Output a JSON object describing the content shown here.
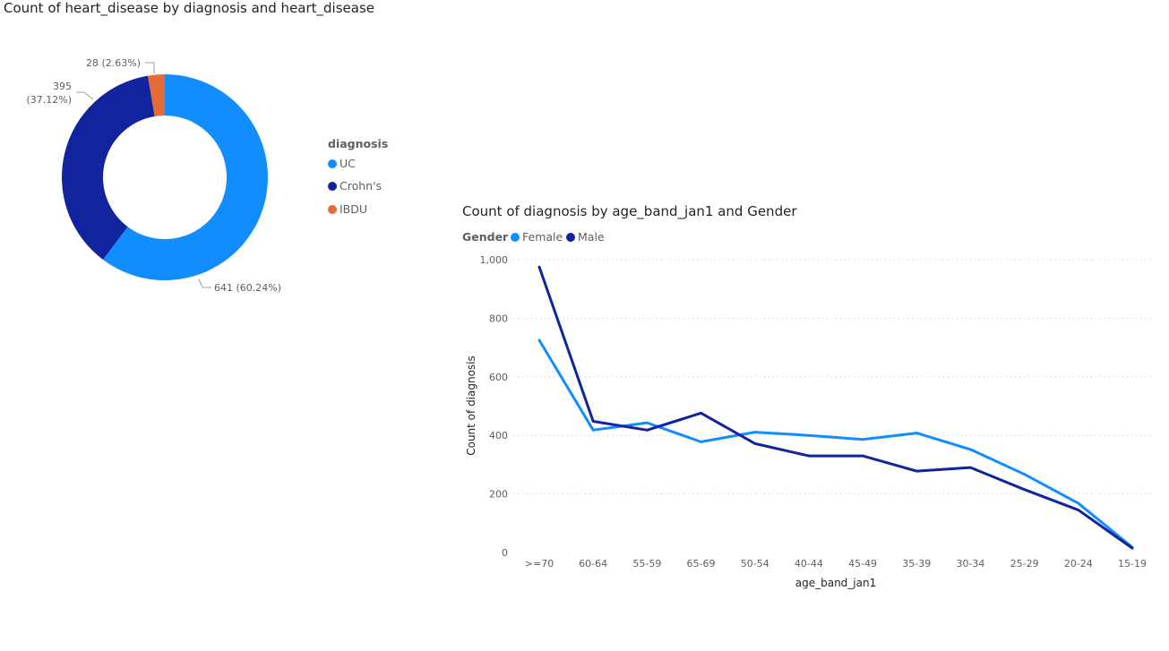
{
  "chart_data": [
    {
      "type": "pie",
      "title": "Count of heart_disease by diagnosis and heart_disease",
      "legend_title": "diagnosis",
      "legend_position": "right",
      "slices": [
        {
          "name": "UC",
          "value": 641,
          "label": "641 (60.24%)",
          "color": "#118DFF"
        },
        {
          "name": "Crohn's",
          "value": 395,
          "label_lines": [
            "395",
            "(37.12%)"
          ],
          "color": "#12239E"
        },
        {
          "name": "IBDU",
          "value": 28,
          "label": "28 (2.63%)",
          "color": "#E66C37"
        }
      ]
    },
    {
      "type": "line",
      "title": "Count of diagnosis by age_band_jan1 and Gender",
      "legend_title": "Gender",
      "legend_position": "top-left",
      "xlabel": "age_band_jan1",
      "ylabel": "Count of diagnosis",
      "ylim": [
        0,
        1000
      ],
      "yticks": [
        0,
        200,
        400,
        600,
        800,
        1000
      ],
      "ytick_labels": [
        "0",
        "200",
        "400",
        "600",
        "800",
        "1,000"
      ],
      "grid": true,
      "categories": [
        ">=70",
        "60-64",
        "55-59",
        "65-69",
        "50-54",
        "40-44",
        "45-49",
        "35-39",
        "30-34",
        "25-29",
        "20-24",
        "15-19"
      ],
      "series": [
        {
          "name": "Female",
          "color": "#118DFF",
          "values": [
            725,
            418,
            443,
            378,
            411,
            400,
            386,
            408,
            352,
            267,
            168,
            18
          ]
        },
        {
          "name": "Male",
          "color": "#12239E",
          "values": [
            975,
            448,
            418,
            476,
            372,
            330,
            330,
            278,
            290,
            215,
            145,
            15
          ]
        }
      ]
    }
  ]
}
